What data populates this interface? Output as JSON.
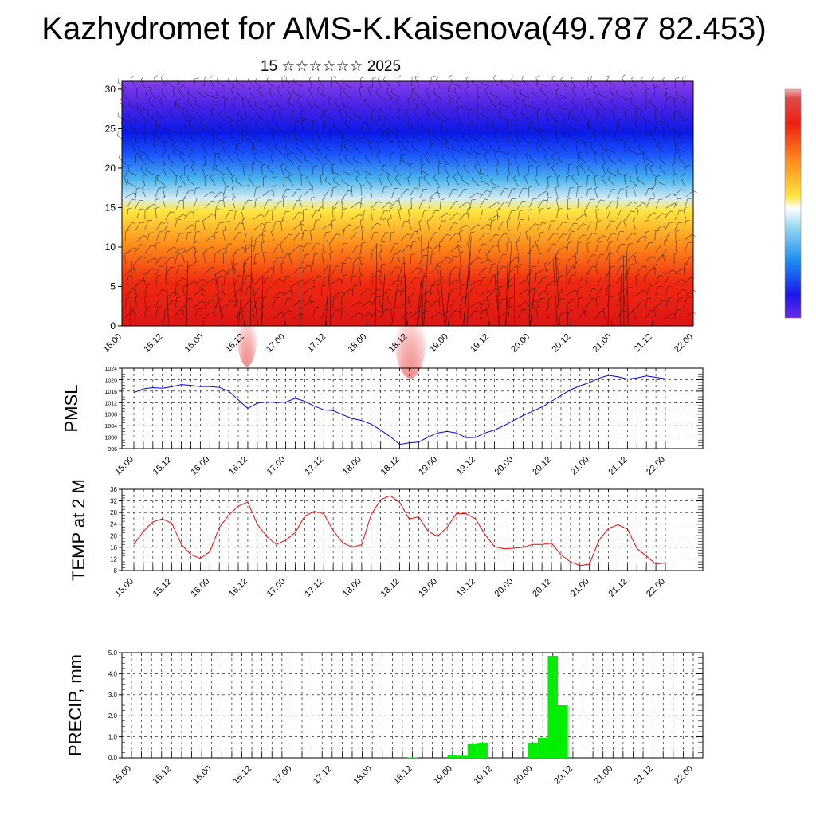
{
  "page": {
    "title": "Kazhydromet for AMS-K.Kaisenova(49.787 82.453)",
    "subtitle": "15 ☆☆☆☆☆☆ 2025"
  },
  "colors": {
    "pmsl_line": "#0000ff",
    "temp_line": "#ff0000",
    "precip_bar": "#00ee00",
    "grid": "#000000"
  },
  "chart_data": [
    {
      "id": "profile",
      "type": "heatmap",
      "title": "",
      "ylabel": "",
      "x_ticks": [
        "15.00",
        "15.12",
        "16.00",
        "16.12",
        "17.00",
        "17.12",
        "18.00",
        "18.12",
        "19.00",
        "19.12",
        "20.00",
        "20.12",
        "21.00",
        "21.12",
        "22.00"
      ],
      "y_ticks": [
        0,
        5,
        10,
        15,
        20,
        25,
        30
      ],
      "ylim": [
        0,
        31
      ],
      "colorbar": "violet-blue-cyan-yellow-orange-red",
      "overlay": "wind barbs"
    },
    {
      "id": "pmsl",
      "type": "line",
      "ylabel": "PMSL",
      "x_ticks": [
        "15.00",
        "15.12",
        "16.00",
        "16.12",
        "17.00",
        "17.12",
        "18.00",
        "18.12",
        "19.00",
        "19.12",
        "20.00",
        "20.12",
        "21.00",
        "21.12",
        "22.00"
      ],
      "y_ticks": [
        996,
        1000,
        1004,
        1008,
        1012,
        1016,
        1020,
        1024
      ],
      "ylim": [
        996,
        1024
      ],
      "x_hours": [
        0,
        3,
        6,
        9,
        12,
        15,
        18,
        21,
        24,
        27,
        30,
        33,
        36,
        39,
        42,
        45,
        48,
        51,
        54,
        57,
        60,
        63,
        66,
        69,
        72,
        75,
        78,
        81,
        84,
        87,
        90,
        93,
        96,
        99,
        102,
        105,
        108,
        111,
        114,
        117,
        120,
        123,
        126,
        129,
        132,
        135,
        138,
        141,
        144,
        147,
        150,
        153,
        156,
        159,
        162,
        165,
        168
      ],
      "values": [
        1015.5,
        1016.8,
        1017.2,
        1017,
        1017.5,
        1018.3,
        1018,
        1017.6,
        1017.6,
        1017.3,
        1016,
        1013,
        1010,
        1011.8,
        1012.3,
        1012,
        1012.2,
        1013.5,
        1012.5,
        1010.8,
        1009.5,
        1009.2,
        1007.8,
        1006.5,
        1005.8,
        1004.5,
        1002.5,
        1000.2,
        997.5,
        998,
        998.3,
        1000,
        1001.5,
        1002,
        1001.5,
        999.8,
        999.9,
        1001.5,
        1002.5,
        1004,
        1005.8,
        1007.5,
        1009,
        1010.5,
        1012.5,
        1014.5,
        1016.5,
        1017.8,
        1019,
        1020.5,
        1021.5,
        1021,
        1020.2,
        1020.6,
        1021.3,
        1020.8,
        1020.3
      ]
    },
    {
      "id": "temp",
      "type": "line",
      "ylabel": "TEMP at 2 M",
      "x_ticks": [
        "15.00",
        "15.12",
        "16.00",
        "16.12",
        "17.00",
        "17.12",
        "18.00",
        "18.12",
        "19.00",
        "19.12",
        "20.00",
        "20.12",
        "21.00",
        "21.12",
        "22.00"
      ],
      "y_ticks": [
        8,
        12,
        16,
        20,
        24,
        28,
        32,
        36
      ],
      "ylim": [
        8,
        36
      ],
      "x_hours": [
        0,
        3,
        6,
        9,
        12,
        15,
        18,
        21,
        24,
        27,
        30,
        33,
        36,
        39,
        42,
        45,
        48,
        51,
        54,
        57,
        60,
        63,
        66,
        69,
        72,
        75,
        78,
        81,
        84,
        87,
        90,
        93,
        96,
        99,
        102,
        105,
        108,
        111,
        114,
        117,
        120,
        123,
        126,
        129,
        132,
        135,
        138,
        141,
        144,
        147,
        150,
        153,
        156,
        159,
        162,
        165,
        168
      ],
      "values": [
        17,
        21.5,
        24.8,
        25.8,
        24.3,
        17,
        13.5,
        12.2,
        14.5,
        22.9,
        27.1,
        30.2,
        31.6,
        24,
        19.7,
        17,
        18.5,
        21.1,
        26.8,
        28.4,
        27.6,
        21.8,
        17.5,
        16.1,
        16.9,
        27.3,
        32.4,
        33.8,
        31.5,
        25.8,
        26.5,
        21.5,
        19.8,
        23,
        27.7,
        27.6,
        25.8,
        20.4,
        16.2,
        15.5,
        15.7,
        16,
        17,
        17,
        17.4,
        13.5,
        11,
        9.7,
        10.2,
        18.5,
        22.5,
        23.8,
        22.3,
        15.6,
        13,
        10.2,
        10.7
      ]
    },
    {
      "id": "precip",
      "type": "bar",
      "ylabel": "PRECIP, mm",
      "x_ticks": [
        "15.00",
        "15.12",
        "16.00",
        "16.12",
        "17.00",
        "17.12",
        "18.00",
        "18.12",
        "19.00",
        "19.12",
        "20.00",
        "20.12",
        "21.00",
        "21.12",
        "22.00"
      ],
      "y_ticks": [
        "0.0",
        "1.0",
        "2.0",
        "3.0",
        "4.0",
        "5.0"
      ],
      "ylim": [
        0,
        5
      ],
      "bar_hours": [
        84,
        96,
        99,
        102,
        105,
        120,
        123,
        126,
        129
      ],
      "values": [
        0.02,
        0.15,
        0.1,
        0.65,
        0.72,
        0.7,
        0.95,
        4.85,
        2.5
      ]
    }
  ]
}
